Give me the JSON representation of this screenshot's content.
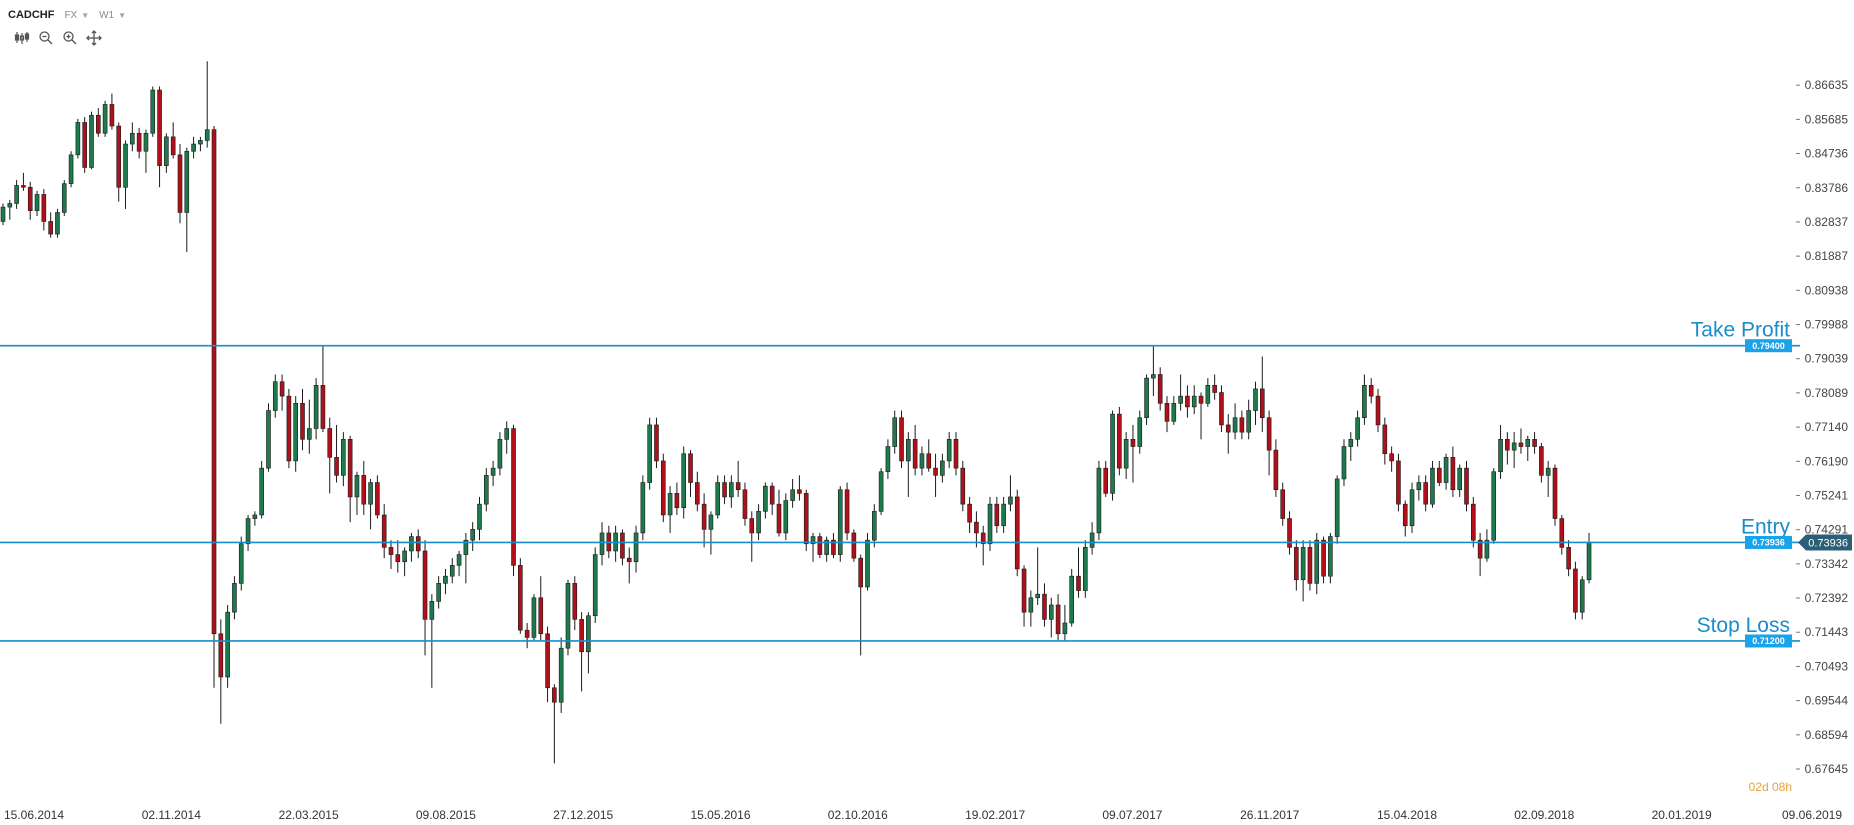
{
  "header": {
    "symbol": "CADCHF",
    "market": "FX",
    "timeframe": "W1"
  },
  "toolbar": {
    "icons": [
      "chart-type-icon",
      "zoom-out-icon",
      "zoom-in-icon",
      "crosshair-icon"
    ]
  },
  "countdown": "02d 08h",
  "colors": {
    "bull": "#1e7a4c",
    "bear": "#b0101a",
    "level": "#1a8dcc",
    "badge": "#1aa3e8",
    "current_badge": "#2b5f78",
    "countdown": "#e8a33a"
  },
  "chart_data": {
    "type": "candlestick",
    "instrument": "CADCHF",
    "timeframe": "W1",
    "ylim": [
      0.67645,
      0.87584
    ],
    "y_ticks": [
      "0.86635",
      "0.85685",
      "0.84736",
      "0.83786",
      "0.82837",
      "0.81887",
      "0.80938",
      "0.79988",
      "0.79039",
      "0.78089",
      "0.77140",
      "0.76190",
      "0.75241",
      "0.74291",
      "0.73342",
      "0.72392",
      "0.71443",
      "0.70493",
      "0.69544",
      "0.68594",
      "0.67645"
    ],
    "x_ticks": [
      "15.06.2014",
      "02.11.2014",
      "22.03.2015",
      "09.08.2015",
      "27.12.2015",
      "15.05.2016",
      "02.10.2016",
      "19.02.2017",
      "09.07.2017",
      "26.11.2017",
      "15.04.2018",
      "02.09.2018",
      "20.01.2019",
      "09.06.2019"
    ],
    "levels": [
      {
        "label": "Take Profit",
        "price": "0.79400"
      },
      {
        "label": "Entry",
        "price": "0.73936"
      },
      {
        "label": "Stop Loss",
        "price": "0.71200"
      }
    ],
    "current_price": "0.73936",
    "candles": [
      [
        0.8285,
        0.8335,
        0.8275,
        0.8325
      ],
      [
        0.8325,
        0.8345,
        0.829,
        0.8335
      ],
      [
        0.8335,
        0.84,
        0.832,
        0.8385
      ],
      [
        0.8385,
        0.842,
        0.837,
        0.838
      ],
      [
        0.838,
        0.8395,
        0.829,
        0.8315
      ],
      [
        0.8315,
        0.837,
        0.83,
        0.836
      ],
      [
        0.836,
        0.8375,
        0.826,
        0.8285
      ],
      [
        0.8285,
        0.831,
        0.824,
        0.825
      ],
      [
        0.825,
        0.832,
        0.824,
        0.831
      ],
      [
        0.831,
        0.84,
        0.83,
        0.839
      ],
      [
        0.839,
        0.848,
        0.838,
        0.847
      ],
      [
        0.847,
        0.857,
        0.846,
        0.856
      ],
      [
        0.856,
        0.8575,
        0.842,
        0.8435
      ],
      [
        0.8435,
        0.859,
        0.843,
        0.858
      ],
      [
        0.858,
        0.86,
        0.852,
        0.853
      ],
      [
        0.853,
        0.862,
        0.852,
        0.861
      ],
      [
        0.861,
        0.864,
        0.854,
        0.855
      ],
      [
        0.855,
        0.856,
        0.834,
        0.838
      ],
      [
        0.838,
        0.851,
        0.832,
        0.85
      ],
      [
        0.85,
        0.856,
        0.848,
        0.853
      ],
      [
        0.853,
        0.8545,
        0.846,
        0.848
      ],
      [
        0.848,
        0.854,
        0.842,
        0.853
      ],
      [
        0.853,
        0.866,
        0.852,
        0.865
      ],
      [
        0.865,
        0.866,
        0.838,
        0.844
      ],
      [
        0.844,
        0.853,
        0.842,
        0.852
      ],
      [
        0.852,
        0.856,
        0.846,
        0.847
      ],
      [
        0.847,
        0.85,
        0.828,
        0.831
      ],
      [
        0.831,
        0.849,
        0.82,
        0.848
      ],
      [
        0.848,
        0.852,
        0.846,
        0.85
      ],
      [
        0.85,
        0.852,
        0.848,
        0.851
      ],
      [
        0.851,
        0.873,
        0.849,
        0.854
      ],
      [
        0.854,
        0.855,
        0.699,
        0.714
      ],
      [
        0.714,
        0.718,
        0.689,
        0.702
      ],
      [
        0.702,
        0.722,
        0.699,
        0.72
      ],
      [
        0.72,
        0.73,
        0.718,
        0.728
      ],
      [
        0.728,
        0.741,
        0.726,
        0.739
      ],
      [
        0.739,
        0.747,
        0.737,
        0.746
      ],
      [
        0.746,
        0.748,
        0.744,
        0.747
      ],
      [
        0.747,
        0.762,
        0.746,
        0.76
      ],
      [
        0.76,
        0.778,
        0.759,
        0.776
      ],
      [
        0.776,
        0.786,
        0.774,
        0.784
      ],
      [
        0.784,
        0.786,
        0.776,
        0.78
      ],
      [
        0.78,
        0.782,
        0.76,
        0.762
      ],
      [
        0.762,
        0.78,
        0.759,
        0.778
      ],
      [
        0.778,
        0.782,
        0.765,
        0.768
      ],
      [
        0.768,
        0.779,
        0.764,
        0.771
      ],
      [
        0.771,
        0.785,
        0.768,
        0.783
      ],
      [
        0.783,
        0.794,
        0.77,
        0.771
      ],
      [
        0.771,
        0.774,
        0.753,
        0.763
      ],
      [
        0.763,
        0.772,
        0.756,
        0.758
      ],
      [
        0.758,
        0.77,
        0.755,
        0.768
      ],
      [
        0.768,
        0.769,
        0.745,
        0.752
      ],
      [
        0.752,
        0.759,
        0.747,
        0.758
      ],
      [
        0.758,
        0.762,
        0.747,
        0.75
      ],
      [
        0.75,
        0.757,
        0.743,
        0.756
      ],
      [
        0.756,
        0.758,
        0.746,
        0.747
      ],
      [
        0.747,
        0.75,
        0.735,
        0.738
      ],
      [
        0.738,
        0.74,
        0.732,
        0.736
      ],
      [
        0.736,
        0.74,
        0.731,
        0.734
      ],
      [
        0.734,
        0.738,
        0.73,
        0.737
      ],
      [
        0.737,
        0.742,
        0.734,
        0.741
      ],
      [
        0.741,
        0.743,
        0.735,
        0.737
      ],
      [
        0.737,
        0.74,
        0.708,
        0.718
      ],
      [
        0.718,
        0.725,
        0.699,
        0.723
      ],
      [
        0.723,
        0.73,
        0.721,
        0.728
      ],
      [
        0.728,
        0.732,
        0.725,
        0.73
      ],
      [
        0.73,
        0.735,
        0.728,
        0.733
      ],
      [
        0.733,
        0.737,
        0.73,
        0.736
      ],
      [
        0.736,
        0.742,
        0.728,
        0.74
      ],
      [
        0.74,
        0.745,
        0.737,
        0.743
      ],
      [
        0.743,
        0.752,
        0.74,
        0.75
      ],
      [
        0.75,
        0.76,
        0.748,
        0.758
      ],
      [
        0.758,
        0.762,
        0.755,
        0.76
      ],
      [
        0.76,
        0.77,
        0.758,
        0.768
      ],
      [
        0.768,
        0.773,
        0.764,
        0.771
      ],
      [
        0.771,
        0.772,
        0.73,
        0.733
      ],
      [
        0.733,
        0.735,
        0.714,
        0.715
      ],
      [
        0.715,
        0.717,
        0.71,
        0.713
      ],
      [
        0.713,
        0.725,
        0.712,
        0.724
      ],
      [
        0.724,
        0.73,
        0.712,
        0.714
      ],
      [
        0.714,
        0.716,
        0.695,
        0.699
      ],
      [
        0.699,
        0.7,
        0.678,
        0.695
      ],
      [
        0.695,
        0.713,
        0.692,
        0.71
      ],
      [
        0.71,
        0.729,
        0.708,
        0.728
      ],
      [
        0.728,
        0.73,
        0.715,
        0.718
      ],
      [
        0.718,
        0.72,
        0.698,
        0.709
      ],
      [
        0.709,
        0.72,
        0.703,
        0.719
      ],
      [
        0.719,
        0.738,
        0.717,
        0.736
      ],
      [
        0.736,
        0.745,
        0.733,
        0.742
      ],
      [
        0.742,
        0.744,
        0.735,
        0.737
      ],
      [
        0.737,
        0.744,
        0.734,
        0.742
      ],
      [
        0.742,
        0.743,
        0.733,
        0.735
      ],
      [
        0.735,
        0.738,
        0.728,
        0.734
      ],
      [
        0.734,
        0.744,
        0.731,
        0.742
      ],
      [
        0.742,
        0.758,
        0.74,
        0.756
      ],
      [
        0.756,
        0.774,
        0.754,
        0.772
      ],
      [
        0.772,
        0.774,
        0.76,
        0.762
      ],
      [
        0.762,
        0.764,
        0.745,
        0.747
      ],
      [
        0.747,
        0.755,
        0.742,
        0.753
      ],
      [
        0.753,
        0.756,
        0.747,
        0.749
      ],
      [
        0.749,
        0.766,
        0.746,
        0.764
      ],
      [
        0.764,
        0.765,
        0.752,
        0.756
      ],
      [
        0.756,
        0.759,
        0.748,
        0.75
      ],
      [
        0.75,
        0.753,
        0.738,
        0.743
      ],
      [
        0.743,
        0.748,
        0.736,
        0.747
      ],
      [
        0.747,
        0.758,
        0.746,
        0.756
      ],
      [
        0.756,
        0.758,
        0.75,
        0.752
      ],
      [
        0.752,
        0.758,
        0.749,
        0.756
      ],
      [
        0.756,
        0.762,
        0.752,
        0.754
      ],
      [
        0.754,
        0.756,
        0.744,
        0.746
      ],
      [
        0.746,
        0.748,
        0.734,
        0.742
      ],
      [
        0.742,
        0.75,
        0.74,
        0.748
      ],
      [
        0.748,
        0.756,
        0.746,
        0.755
      ],
      [
        0.755,
        0.756,
        0.747,
        0.75
      ],
      [
        0.75,
        0.754,
        0.741,
        0.742
      ],
      [
        0.742,
        0.753,
        0.74,
        0.751
      ],
      [
        0.751,
        0.757,
        0.749,
        0.754
      ],
      [
        0.754,
        0.758,
        0.751,
        0.753
      ],
      [
        0.753,
        0.754,
        0.737,
        0.739
      ],
      [
        0.739,
        0.742,
        0.734,
        0.741
      ],
      [
        0.741,
        0.742,
        0.735,
        0.736
      ],
      [
        0.736,
        0.741,
        0.734,
        0.74
      ],
      [
        0.74,
        0.742,
        0.735,
        0.736
      ],
      [
        0.736,
        0.755,
        0.734,
        0.754
      ],
      [
        0.754,
        0.756,
        0.74,
        0.742
      ],
      [
        0.742,
        0.743,
        0.734,
        0.735
      ],
      [
        0.735,
        0.736,
        0.708,
        0.727
      ],
      [
        0.727,
        0.742,
        0.726,
        0.74
      ],
      [
        0.74,
        0.75,
        0.738,
        0.748
      ],
      [
        0.748,
        0.76,
        0.747,
        0.759
      ],
      [
        0.759,
        0.768,
        0.757,
        0.766
      ],
      [
        0.766,
        0.776,
        0.764,
        0.774
      ],
      [
        0.774,
        0.776,
        0.76,
        0.762
      ],
      [
        0.762,
        0.77,
        0.752,
        0.768
      ],
      [
        0.768,
        0.772,
        0.758,
        0.76
      ],
      [
        0.76,
        0.766,
        0.758,
        0.764
      ],
      [
        0.764,
        0.768,
        0.759,
        0.76
      ],
      [
        0.76,
        0.764,
        0.752,
        0.758
      ],
      [
        0.758,
        0.764,
        0.756,
        0.762
      ],
      [
        0.762,
        0.77,
        0.76,
        0.768
      ],
      [
        0.768,
        0.77,
        0.758,
        0.76
      ],
      [
        0.76,
        0.762,
        0.748,
        0.75
      ],
      [
        0.75,
        0.752,
        0.742,
        0.745
      ],
      [
        0.745,
        0.748,
        0.738,
        0.742
      ],
      [
        0.742,
        0.744,
        0.733,
        0.739
      ],
      [
        0.739,
        0.752,
        0.737,
        0.75
      ],
      [
        0.75,
        0.752,
        0.742,
        0.744
      ],
      [
        0.744,
        0.752,
        0.742,
        0.75
      ],
      [
        0.75,
        0.758,
        0.748,
        0.752
      ],
      [
        0.752,
        0.754,
        0.73,
        0.732
      ],
      [
        0.732,
        0.733,
        0.716,
        0.72
      ],
      [
        0.72,
        0.726,
        0.716,
        0.724
      ],
      [
        0.724,
        0.738,
        0.722,
        0.725
      ],
      [
        0.725,
        0.728,
        0.716,
        0.718
      ],
      [
        0.718,
        0.724,
        0.713,
        0.722
      ],
      [
        0.722,
        0.725,
        0.712,
        0.714
      ],
      [
        0.714,
        0.722,
        0.712,
        0.717
      ],
      [
        0.717,
        0.732,
        0.716,
        0.73
      ],
      [
        0.73,
        0.738,
        0.724,
        0.726
      ],
      [
        0.726,
        0.74,
        0.724,
        0.738
      ],
      [
        0.738,
        0.745,
        0.736,
        0.742
      ],
      [
        0.742,
        0.762,
        0.74,
        0.76
      ],
      [
        0.76,
        0.762,
        0.752,
        0.753
      ],
      [
        0.753,
        0.776,
        0.751,
        0.775
      ],
      [
        0.775,
        0.777,
        0.758,
        0.76
      ],
      [
        0.76,
        0.77,
        0.757,
        0.768
      ],
      [
        0.768,
        0.772,
        0.756,
        0.766
      ],
      [
        0.766,
        0.776,
        0.764,
        0.774
      ],
      [
        0.774,
        0.786,
        0.772,
        0.785
      ],
      [
        0.785,
        0.794,
        0.78,
        0.786
      ],
      [
        0.786,
        0.788,
        0.776,
        0.778
      ],
      [
        0.778,
        0.78,
        0.77,
        0.773
      ],
      [
        0.773,
        0.78,
        0.772,
        0.778
      ],
      [
        0.778,
        0.786,
        0.776,
        0.78
      ],
      [
        0.78,
        0.783,
        0.774,
        0.777
      ],
      [
        0.777,
        0.783,
        0.775,
        0.78
      ],
      [
        0.78,
        0.781,
        0.768,
        0.778
      ],
      [
        0.778,
        0.785,
        0.777,
        0.783
      ],
      [
        0.783,
        0.786,
        0.779,
        0.781
      ],
      [
        0.781,
        0.783,
        0.77,
        0.772
      ],
      [
        0.772,
        0.775,
        0.764,
        0.77
      ],
      [
        0.77,
        0.778,
        0.768,
        0.774
      ],
      [
        0.774,
        0.776,
        0.768,
        0.77
      ],
      [
        0.77,
        0.779,
        0.768,
        0.776
      ],
      [
        0.776,
        0.784,
        0.772,
        0.782
      ],
      [
        0.782,
        0.791,
        0.77,
        0.774
      ],
      [
        0.774,
        0.776,
        0.758,
        0.765
      ],
      [
        0.765,
        0.768,
        0.752,
        0.754
      ],
      [
        0.754,
        0.756,
        0.744,
        0.746
      ],
      [
        0.746,
        0.748,
        0.736,
        0.738
      ],
      [
        0.738,
        0.74,
        0.726,
        0.729
      ],
      [
        0.729,
        0.74,
        0.723,
        0.738
      ],
      [
        0.738,
        0.74,
        0.726,
        0.728
      ],
      [
        0.728,
        0.742,
        0.725,
        0.74
      ],
      [
        0.74,
        0.741,
        0.728,
        0.73
      ],
      [
        0.73,
        0.742,
        0.728,
        0.741
      ],
      [
        0.741,
        0.758,
        0.739,
        0.757
      ],
      [
        0.757,
        0.768,
        0.755,
        0.766
      ],
      [
        0.766,
        0.77,
        0.762,
        0.768
      ],
      [
        0.768,
        0.776,
        0.766,
        0.774
      ],
      [
        0.774,
        0.786,
        0.772,
        0.783
      ],
      [
        0.783,
        0.785,
        0.778,
        0.78
      ],
      [
        0.78,
        0.782,
        0.77,
        0.772
      ],
      [
        0.772,
        0.774,
        0.761,
        0.764
      ],
      [
        0.764,
        0.766,
        0.759,
        0.762
      ],
      [
        0.762,
        0.764,
        0.748,
        0.75
      ],
      [
        0.75,
        0.751,
        0.741,
        0.744
      ],
      [
        0.744,
        0.756,
        0.742,
        0.754
      ],
      [
        0.754,
        0.758,
        0.751,
        0.756
      ],
      [
        0.756,
        0.758,
        0.748,
        0.75
      ],
      [
        0.75,
        0.762,
        0.749,
        0.76
      ],
      [
        0.76,
        0.762,
        0.755,
        0.756
      ],
      [
        0.756,
        0.764,
        0.754,
        0.763
      ],
      [
        0.763,
        0.766,
        0.752,
        0.754
      ],
      [
        0.754,
        0.761,
        0.752,
        0.76
      ],
      [
        0.76,
        0.762,
        0.748,
        0.75
      ],
      [
        0.75,
        0.752,
        0.738,
        0.74
      ],
      [
        0.74,
        0.742,
        0.73,
        0.735
      ],
      [
        0.735,
        0.743,
        0.734,
        0.74
      ],
      [
        0.74,
        0.76,
        0.739,
        0.759
      ],
      [
        0.759,
        0.772,
        0.757,
        0.768
      ],
      [
        0.768,
        0.77,
        0.761,
        0.765
      ],
      [
        0.765,
        0.77,
        0.76,
        0.767
      ],
      [
        0.767,
        0.771,
        0.764,
        0.766
      ],
      [
        0.766,
        0.769,
        0.762,
        0.768
      ],
      [
        0.768,
        0.77,
        0.764,
        0.766
      ],
      [
        0.766,
        0.767,
        0.756,
        0.758
      ],
      [
        0.758,
        0.762,
        0.752,
        0.76
      ],
      [
        0.76,
        0.761,
        0.744,
        0.746
      ],
      [
        0.746,
        0.747,
        0.736,
        0.738
      ],
      [
        0.738,
        0.74,
        0.73,
        0.732
      ],
      [
        0.732,
        0.734,
        0.718,
        0.72
      ],
      [
        0.72,
        0.73,
        0.718,
        0.729
      ],
      [
        0.729,
        0.742,
        0.728,
        0.7394
      ]
    ]
  }
}
